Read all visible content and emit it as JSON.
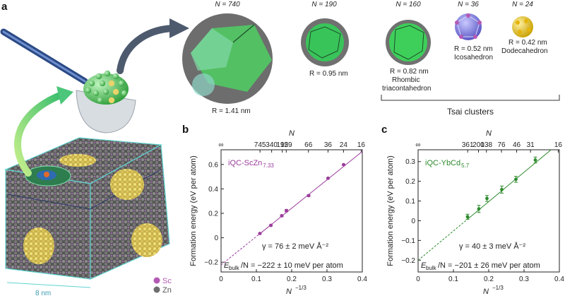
{
  "panel_labels": {
    "a": "a",
    "b": "b",
    "c": "c"
  },
  "clusters": [
    {
      "n_label": "N = 740",
      "r_label": "R = 1.41 nm",
      "name": ""
    },
    {
      "n_label": "N = 190",
      "r_label": "R = 0.95 nm",
      "name": ""
    },
    {
      "n_label": "N = 160",
      "r_label": "R = 0.82 nm",
      "name": "Rhombic triacontahedron",
      "name_l1": "Rhombic",
      "name_l2": "triacontahedron"
    },
    {
      "n_label": "N = 36",
      "r_label": "R = 0.52 nm",
      "name": "Icosahedron"
    },
    {
      "n_label": "N = 24",
      "r_label": "R = 0.42 nm",
      "name": "Dodecahedron"
    }
  ],
  "tsai_label": "Tsai clusters",
  "legend": [
    {
      "label": "Sc",
      "color": "#b45ab4"
    },
    {
      "label": "Zn",
      "color": "#6e6e6e"
    }
  ],
  "scale_label": "8 nm",
  "colors": {
    "scgreen": "#3cb44b",
    "purple": "#9b3c9b",
    "green": "#2e8b2e",
    "cube": "#5fd3d0"
  },
  "chart_data": [
    {
      "type": "line",
      "panel": "b",
      "label": "iQC-ScZn",
      "label_sub": "7.33",
      "top_axis_label": "N",
      "top_ticks": [
        "∞",
        "745",
        "340",
        "192",
        "159",
        "66",
        "36",
        "24",
        "16"
      ],
      "xlabel": "N",
      "ylabel": "Formation energy (eV per atom)",
      "xlim": [
        0,
        0.4
      ],
      "ylim": [
        -0.28,
        0.72
      ],
      "xticks": [
        "0",
        "0.1",
        "0.2",
        "0.3",
        "0.4"
      ],
      "yticks": [
        "-0.2",
        "0",
        "0.2",
        "0.4",
        "0.6"
      ],
      "points": [
        {
          "x": 0.11,
          "y": 0.035,
          "err": 0.005
        },
        {
          "x": 0.141,
          "y": 0.101,
          "err": 0.005
        },
        {
          "x": 0.172,
          "y": 0.18,
          "err": 0.008
        },
        {
          "x": 0.185,
          "y": 0.222,
          "err": 0.01
        },
        {
          "x": 0.248,
          "y": 0.345,
          "err": 0.006
        },
        {
          "x": 0.303,
          "y": 0.487,
          "err": 0.005
        },
        {
          "x": 0.347,
          "y": 0.598,
          "err": 0.004
        }
      ],
      "fit": {
        "intercept": -0.222,
        "slope": 2.32
      },
      "gamma_label": "γ = 76 ± 2 meV Å⁻²",
      "ebulk_label": "/N = −222 ± 10 meV per atom",
      "ebulk_prefix": "E",
      "ebulk_sub": "bulk"
    },
    {
      "type": "line",
      "panel": "c",
      "label": "iQC-YbCd",
      "label_sub": "5.7",
      "top_axis_label": "N",
      "top_ticks": [
        "∞",
        "361",
        "200",
        "138",
        "76",
        "46",
        "31",
        "16"
      ],
      "xlabel": "N",
      "ylabel": "Formation energy (eV per atom)",
      "xlim": [
        0,
        0.4
      ],
      "ylim": [
        -0.26,
        0.36
      ],
      "xticks": [
        "0",
        "0.1",
        "0.2",
        "0.3",
        "0.4"
      ],
      "yticks": [
        "-0.2",
        "-0.1",
        "0",
        "0.1",
        "0.2",
        "0.3"
      ],
      "points": [
        {
          "x": 0.14,
          "y": 0.02,
          "err": 0.013
        },
        {
          "x": 0.172,
          "y": 0.06,
          "err": 0.018
        },
        {
          "x": 0.195,
          "y": 0.113,
          "err": 0.015
        },
        {
          "x": 0.237,
          "y": 0.158,
          "err": 0.018
        },
        {
          "x": 0.277,
          "y": 0.21,
          "err": 0.015
        },
        {
          "x": 0.332,
          "y": 0.308,
          "err": 0.015
        }
      ],
      "fit": {
        "intercept": -0.201,
        "slope": 1.49
      },
      "gamma_label": "γ = 40 ± 3 meV Å⁻²",
      "ebulk_label": "/N = −201 ± 26 meV per atom",
      "ebulk_prefix": "E",
      "ebulk_sub": "bulk"
    }
  ]
}
